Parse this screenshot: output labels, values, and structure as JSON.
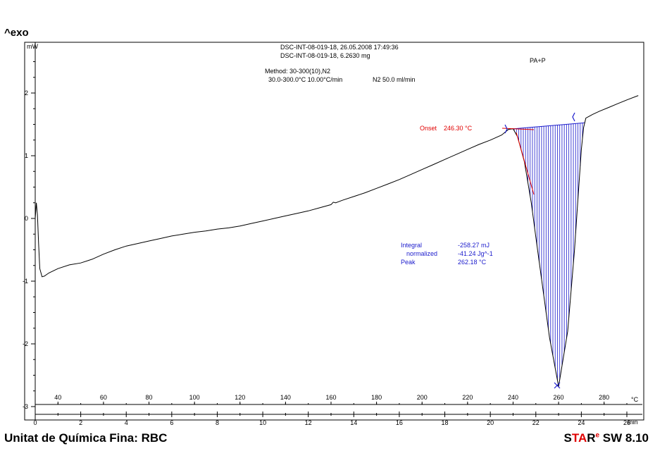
{
  "page": {
    "exo_label": "^exo",
    "footer_left": "Unitat de Química Fina: RBC",
    "footer_brand_s": "S",
    "footer_brand_ta": "TA",
    "footer_brand_r": "R",
    "footer_brand_e": "e",
    "footer_version": " SW 8.10"
  },
  "header": {
    "line1": "DSC-INT-08-019-18, 26.05.2008 17:49:36",
    "line2": "DSC-INT-08-019-18, 6.2630 mg",
    "method": "Method: 30-300(10),N2",
    "conditions": "30.0-300.0°C 10.00°C/min",
    "gas": "N2 50.0 ml/min",
    "sample": "PA+P"
  },
  "annotations": {
    "onset_label": "Onset",
    "onset_value": "246.30 °C",
    "integral_label": "Integral",
    "integral_value": "-258.27 mJ",
    "normalized_label": "normalized",
    "normalized_value": "-41.24 Jg^-1",
    "peak_label": "Peak",
    "peak_value": "262.18 °C"
  },
  "colors": {
    "curve": "#000000",
    "baseline_fill": "#1a1acc",
    "onset": "#e00000",
    "text_blue": "#1a1acc"
  },
  "chart_data": {
    "type": "line",
    "y_unit": "mW",
    "ylim": [
      -3.05,
      2.8
    ],
    "y_ticks": [
      -3,
      -2,
      -1,
      0,
      1,
      2
    ],
    "x_time_unit": "min",
    "x_time_ticks": [
      0,
      2,
      4,
      6,
      8,
      10,
      12,
      14,
      16,
      18,
      20,
      22,
      24,
      26
    ],
    "x_time_range": [
      0,
      26.5
    ],
    "x_temp_unit": "°C",
    "x_temp_ticks": [
      40,
      60,
      80,
      100,
      120,
      140,
      160,
      180,
      200,
      220,
      240,
      260,
      280
    ],
    "grid": false,
    "series": [
      {
        "x_min": [
          0.0,
          0.05,
          0.1,
          0.15,
          0.2,
          0.3,
          0.4,
          0.6,
          1.0,
          1.5,
          2.0,
          2.5,
          3.0,
          3.5,
          4.0,
          4.5,
          5.0,
          5.5,
          6.0,
          6.5,
          7.0,
          7.5,
          8.0,
          8.5,
          9.0,
          9.5,
          10.0,
          10.5,
          11.0,
          11.5,
          12.0,
          12.5,
          13.0,
          13.1,
          13.2,
          13.5,
          14.0,
          14.5,
          15.0,
          15.5,
          16.0,
          16.5,
          17.0,
          17.5,
          18.0,
          18.5,
          19.0,
          19.5,
          20.0,
          20.5,
          20.8,
          21.0,
          21.2,
          21.5,
          21.8,
          22.0,
          22.3,
          22.6,
          23.0,
          23.4,
          23.7,
          23.85,
          24.0,
          24.1,
          24.2,
          24.35,
          24.5,
          24.8,
          25.2,
          25.6,
          26.0,
          26.5
        ],
        "y": [
          0.0,
          0.25,
          0.05,
          -0.4,
          -0.8,
          -0.93,
          -0.92,
          -0.87,
          -0.8,
          -0.74,
          -0.71,
          -0.65,
          -0.57,
          -0.5,
          -0.44,
          -0.4,
          -0.36,
          -0.32,
          -0.28,
          -0.25,
          -0.22,
          -0.2,
          -0.17,
          -0.15,
          -0.12,
          -0.08,
          -0.04,
          0.0,
          0.04,
          0.08,
          0.12,
          0.17,
          0.22,
          0.26,
          0.25,
          0.29,
          0.35,
          0.41,
          0.48,
          0.55,
          0.62,
          0.7,
          0.78,
          0.86,
          0.94,
          1.02,
          1.1,
          1.18,
          1.25,
          1.33,
          1.42,
          1.43,
          1.3,
          0.9,
          0.25,
          -0.3,
          -1.1,
          -1.9,
          -2.68,
          -1.8,
          -0.5,
          0.3,
          1.1,
          1.45,
          1.6,
          1.63,
          1.66,
          1.71,
          1.77,
          1.83,
          1.89,
          1.96
        ]
      }
    ]
  }
}
